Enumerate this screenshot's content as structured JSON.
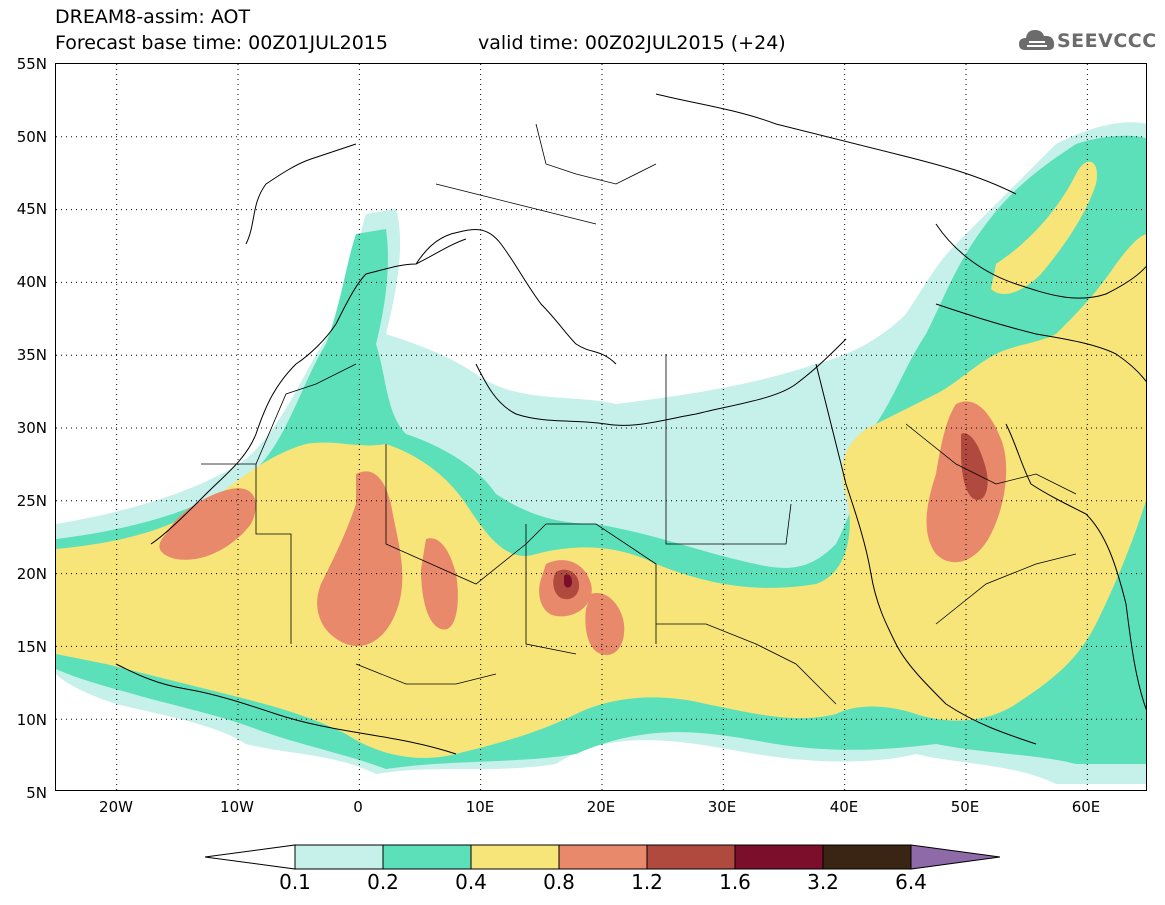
{
  "header": {
    "title_line1": "DREAM8-assim: AOT",
    "title_line2": "Forecast base time: 00Z01JUL2015",
    "valid_time": "valid time: 00Z02JUL2015 (+24)",
    "logo_text": "SEEVCCC"
  },
  "map": {
    "projection": "lat-lon",
    "lat_range": [
      5,
      55
    ],
    "lon_range": [
      -25,
      65
    ],
    "lat_ticks": [
      "55N",
      "50N",
      "45N",
      "40N",
      "35N",
      "30N",
      "25N",
      "20N",
      "15N",
      "10N",
      "5N"
    ],
    "lon_ticks": [
      "20W",
      "10W",
      "0",
      "10E",
      "20E",
      "30E",
      "40E",
      "50E",
      "60E"
    ],
    "gridlines": "dotted"
  },
  "colorbar": {
    "labels": [
      "0.1",
      "0.2",
      "0.4",
      "0.8",
      "1.2",
      "1.6",
      "3.2",
      "6.4"
    ],
    "colors": [
      "#ffffff",
      "#c6f0ea",
      "#5be0b9",
      "#f7e57a",
      "#e8896b",
      "#b04a3e",
      "#7a0e2b",
      "#3a2414",
      "#8e6aa8"
    ]
  }
}
